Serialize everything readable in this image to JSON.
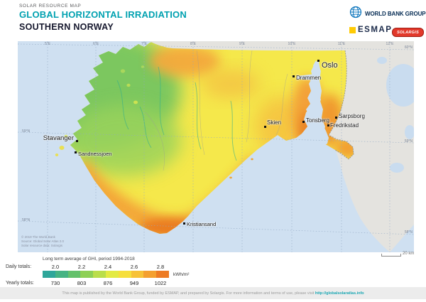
{
  "header": {
    "eyebrow": "SOLAR RESOURCE MAP",
    "title": "GLOBAL HORIZONTAL IRRADIATION",
    "region": "SOUTHERN NORWAY"
  },
  "logos": {
    "world_bank": "WORLD BANK GROUP",
    "esmap": "ESMAP",
    "solargis": "SOLARGIS"
  },
  "map": {
    "lon_labels": [
      "5°E",
      "6°E",
      "7°E",
      "8°E",
      "9°E",
      "10°E",
      "11°E",
      "12°E"
    ],
    "lat_left": [
      "59°N",
      "58°N"
    ],
    "lat_right": [
      "60°N",
      "59°N",
      "58°N"
    ],
    "cities": [
      {
        "name": "Oslo"
      },
      {
        "name": "Drammen"
      },
      {
        "name": "Tonsberg"
      },
      {
        "name": "Sarpsborg"
      },
      {
        "name": "Fredrikstad"
      },
      {
        "name": "Skien"
      },
      {
        "name": "Stavanger"
      },
      {
        "name": "Sandnessjoen"
      },
      {
        "name": "Kristiansand"
      }
    ],
    "copyright": [
      "© 2019 The World Bank",
      "Source: Global Solar Atlas 2.0",
      "Solar resource data: Solargis"
    ],
    "scale_label": "20 km",
    "colors": {
      "water": "#cfe0f1",
      "no_data_land": "#e4e3df",
      "border_dash": "#8a8a8a"
    }
  },
  "legend": {
    "title": "Long term average of GHI, period 1994-2018",
    "daily_label": "Daily totals:",
    "yearly_label": "Yearly totals:",
    "unit": "kWh/m²",
    "daily_values": [
      "2.0",
      "2.2",
      "2.4",
      "2.6",
      "2.8"
    ],
    "yearly_values": [
      "730",
      "803",
      "876",
      "949",
      "1022"
    ],
    "colors": [
      "#2fa69a",
      "#46b383",
      "#64c16c",
      "#8ed055",
      "#bade4b",
      "#e3ea43",
      "#f6df3d",
      "#f7c238",
      "#f4a030",
      "#ed7b24"
    ]
  },
  "footer": {
    "text": "This map is published by the World Bank Group, funded by ESMAP, and prepared by Solargis. For more information and terms of use, please visit ",
    "url": "http://globalsolaratlas.info"
  }
}
